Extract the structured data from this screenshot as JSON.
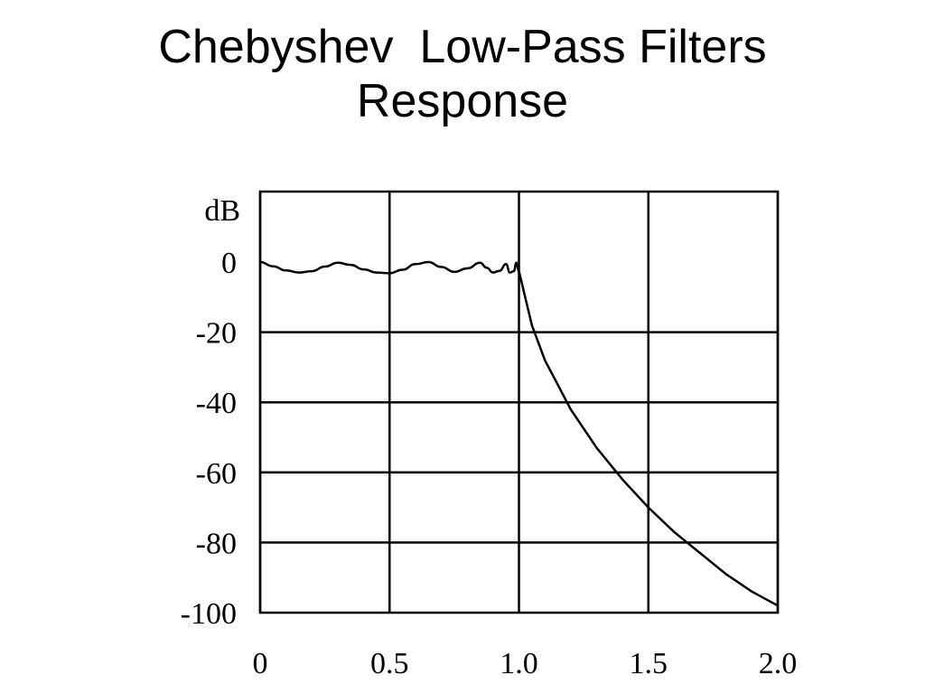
{
  "slide": {
    "title_line1": "Chebyshev  Low-Pass Filters",
    "title_line2": "Response"
  },
  "chart_data": {
    "type": "line",
    "title": "",
    "xlabel": "",
    "ylabel": "dB",
    "xlim": [
      0,
      2.0
    ],
    "ylim": [
      -100,
      0
    ],
    "grid": true,
    "xticks": [
      {
        "value": 0,
        "label": "0"
      },
      {
        "value": 0.5,
        "label": "0.5"
      },
      {
        "value": 1.0,
        "label": "1.0"
      },
      {
        "value": 1.5,
        "label": "1.5"
      },
      {
        "value": 2.0,
        "label": "2.0"
      }
    ],
    "yticks": [
      {
        "value": 0,
        "label": "0"
      },
      {
        "value": -20,
        "label": "-20"
      },
      {
        "value": -40,
        "label": "-40"
      },
      {
        "value": -60,
        "label": "-60"
      },
      {
        "value": -80,
        "label": "-80"
      },
      {
        "value": -100,
        "label": "-100"
      }
    ],
    "series": [
      {
        "color": "#000000",
        "x": [
          0,
          0.05,
          0.1,
          0.15,
          0.2,
          0.25,
          0.3,
          0.35,
          0.4,
          0.45,
          0.5,
          0.55,
          0.6,
          0.65,
          0.7,
          0.75,
          0.8,
          0.85,
          0.875,
          0.9,
          0.925,
          0.95,
          0.965,
          0.98,
          0.99,
          1.0,
          1.05,
          1.1,
          1.2,
          1.3,
          1.4,
          1.5,
          1.6,
          1.7,
          1.8,
          1.9,
          2.0
        ],
        "y": [
          0,
          -1.2,
          -2.4,
          -3,
          -2.6,
          -1.3,
          -0.2,
          -0.8,
          -2.1,
          -3,
          -3.2,
          -2.2,
          -0.6,
          0,
          -1.4,
          -2.8,
          -1.8,
          -0.2,
          -1.6,
          -3,
          -2.5,
          -0.6,
          -3,
          -2.6,
          -0.2,
          -2.6,
          -18,
          -28,
          -42,
          -53,
          -62,
          -70,
          -77,
          -83,
          -89,
          -94,
          -98
        ]
      }
    ]
  }
}
